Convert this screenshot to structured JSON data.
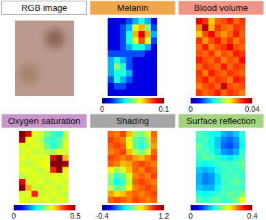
{
  "chart_data": [
    {
      "type": "image",
      "title": "RGB image"
    },
    {
      "type": "heatmap",
      "title": "Melanin",
      "cells": [
        [
          0.01,
          0.01,
          0.01,
          0.02,
          0.03,
          0.04,
          0.03,
          0.01
        ],
        [
          0.01,
          0.01,
          0.02,
          0.03,
          0.06,
          0.07,
          0.05,
          0.02
        ],
        [
          0.01,
          0.01,
          0.02,
          0.04,
          0.07,
          0.09,
          0.07,
          0.03
        ],
        [
          0.01,
          0.01,
          0.02,
          0.04,
          0.06,
          0.08,
          0.06,
          0.02
        ],
        [
          0.01,
          0.01,
          0.02,
          0.03,
          0.04,
          0.04,
          0.03,
          0.01
        ],
        [
          0.02,
          0.02,
          0.02,
          0.02,
          0.02,
          0.02,
          0.01,
          0.01
        ],
        [
          0.03,
          0.04,
          0.03,
          0.02,
          0.01,
          0.01,
          0.01,
          0.01
        ],
        [
          0.03,
          0.05,
          0.04,
          0.02,
          0.01,
          0.01,
          0.01,
          0.01
        ],
        [
          0.03,
          0.04,
          0.04,
          0.03,
          0.01,
          0.01,
          0.01,
          0.01
        ],
        [
          0.02,
          0.04,
          0.03,
          0.02,
          0.01,
          0.01,
          0.01,
          0.01
        ],
        [
          0.01,
          0.02,
          0.02,
          0.01,
          0.01,
          0.01,
          0.01,
          0.01
        ],
        [
          0.01,
          0.01,
          0.01,
          0.01,
          0.01,
          0.01,
          0.01,
          0.01
        ]
      ],
      "colorbar": {
        "range": [
          0,
          0.1
        ],
        "ticks": [
          0,
          0.1
        ]
      }
    },
    {
      "type": "heatmap",
      "title": "Blood volume",
      "cells": [
        [
          0.036,
          0.033,
          0.027,
          0.031,
          0.032,
          0.034,
          0.031,
          0.033
        ],
        [
          0.03,
          0.038,
          0.028,
          0.033,
          0.031,
          0.03,
          0.033,
          0.032
        ],
        [
          0.027,
          0.032,
          0.035,
          0.031,
          0.029,
          0.031,
          0.034,
          0.031
        ],
        [
          0.033,
          0.029,
          0.032,
          0.034,
          0.031,
          0.033,
          0.03,
          0.032
        ],
        [
          0.031,
          0.034,
          0.03,
          0.032,
          0.033,
          0.036,
          0.032,
          0.031
        ],
        [
          0.032,
          0.031,
          0.033,
          0.03,
          0.032,
          0.031,
          0.034,
          0.033
        ],
        [
          0.034,
          0.032,
          0.031,
          0.033,
          0.03,
          0.032,
          0.031,
          0.035
        ],
        [
          0.031,
          0.033,
          0.032,
          0.031,
          0.034,
          0.031,
          0.033,
          0.032
        ],
        [
          0.033,
          0.03,
          0.034,
          0.032,
          0.031,
          0.033,
          0.032,
          0.031
        ],
        [
          0.032,
          0.034,
          0.031,
          0.033,
          0.032,
          0.03,
          0.034,
          0.033
        ],
        [
          0.03,
          0.032,
          0.033,
          0.031,
          0.037,
          0.032,
          0.031,
          0.032
        ],
        [
          0.033,
          0.031,
          0.032,
          0.034,
          0.031,
          0.033,
          0.032,
          0.03
        ]
      ],
      "colorbar": {
        "range": [
          0,
          0.04
        ],
        "ticks": [
          0,
          0.04
        ]
      }
    },
    {
      "type": "heatmap",
      "title": "Oxygen saturation",
      "cells": [
        [
          0.5,
          0.45,
          0.3,
          0.29,
          0.25,
          0.22,
          0.2,
          0.28
        ],
        [
          0.48,
          0.31,
          0.29,
          0.28,
          0.22,
          0.21,
          0.23,
          0.29
        ],
        [
          0.3,
          0.29,
          0.3,
          0.29,
          0.24,
          0.2,
          0.24,
          0.3
        ],
        [
          0.29,
          0.3,
          0.28,
          0.29,
          0.28,
          0.27,
          0.3,
          0.29
        ],
        [
          0.3,
          0.29,
          0.3,
          0.29,
          0.3,
          0.45,
          0.5,
          0.35
        ],
        [
          0.29,
          0.28,
          0.29,
          0.3,
          0.31,
          0.5,
          0.5,
          0.48
        ],
        [
          0.3,
          0.3,
          0.29,
          0.28,
          0.3,
          0.42,
          0.5,
          0.32
        ],
        [
          0.28,
          0.29,
          0.3,
          0.29,
          0.29,
          0.3,
          0.29,
          0.3
        ],
        [
          0.45,
          0.3,
          0.29,
          0.3,
          0.28,
          0.29,
          0.3,
          0.29
        ],
        [
          0.5,
          0.35,
          0.29,
          0.28,
          0.3,
          0.29,
          0.28,
          0.3
        ],
        [
          0.29,
          0.3,
          0.42,
          0.29,
          0.29,
          0.3,
          0.29,
          0.28
        ],
        [
          0.3,
          0.29,
          0.3,
          0.29,
          0.3,
          0.28,
          0.3,
          0.29
        ]
      ],
      "colorbar": {
        "range": [
          0,
          0.5
        ],
        "ticks": [
          0,
          0.5
        ]
      }
    },
    {
      "type": "heatmap",
      "title": "Shading",
      "cells": [
        [
          0.85,
          0.8,
          0.9,
          0.7,
          0.45,
          0.4,
          0.55,
          0.85
        ],
        [
          0.9,
          0.85,
          0.8,
          0.55,
          0.35,
          0.3,
          0.45,
          0.8
        ],
        [
          0.85,
          0.9,
          0.85,
          0.6,
          0.35,
          0.25,
          0.4,
          0.75
        ],
        [
          0.8,
          0.85,
          0.9,
          0.7,
          0.5,
          0.4,
          0.55,
          0.85
        ],
        [
          0.9,
          0.85,
          0.8,
          0.85,
          0.75,
          0.7,
          0.8,
          0.9
        ],
        [
          0.85,
          0.8,
          0.7,
          0.75,
          0.85,
          0.9,
          0.85,
          0.8
        ],
        [
          0.6,
          0.45,
          0.55,
          0.7,
          0.85,
          0.8,
          0.9,
          0.85
        ],
        [
          0.45,
          0.3,
          0.35,
          0.55,
          0.8,
          0.85,
          0.8,
          0.9
        ],
        [
          0.4,
          0.2,
          0.3,
          0.5,
          0.85,
          0.9,
          0.85,
          0.8
        ],
        [
          0.5,
          0.35,
          0.4,
          0.6,
          0.8,
          0.85,
          0.9,
          0.85
        ],
        [
          0.75,
          0.65,
          0.7,
          0.8,
          0.85,
          0.8,
          0.85,
          0.9
        ],
        [
          0.85,
          0.9,
          0.85,
          0.8,
          0.9,
          0.85,
          0.8,
          0.85
        ]
      ],
      "colorbar": {
        "range": [
          -0.4,
          1.2
        ],
        "ticks": [
          -0.4,
          1.2
        ]
      }
    },
    {
      "type": "heatmap",
      "title": "Surface reflection",
      "cells": [
        [
          0.18,
          0.17,
          0.16,
          0.15,
          0.12,
          0.11,
          0.13,
          0.17
        ],
        [
          0.17,
          0.18,
          0.16,
          0.13,
          0.1,
          0.09,
          0.11,
          0.16
        ],
        [
          0.19,
          0.17,
          0.16,
          0.13,
          0.09,
          0.08,
          0.1,
          0.15
        ],
        [
          0.18,
          0.18,
          0.17,
          0.14,
          0.11,
          0.1,
          0.12,
          0.17
        ],
        [
          0.17,
          0.19,
          0.18,
          0.17,
          0.15,
          0.14,
          0.16,
          0.18
        ],
        [
          0.16,
          0.15,
          0.16,
          0.17,
          0.18,
          0.17,
          0.18,
          0.19
        ],
        [
          0.13,
          0.12,
          0.13,
          0.16,
          0.17,
          0.18,
          0.17,
          0.18
        ],
        [
          0.12,
          0.1,
          0.11,
          0.14,
          0.18,
          0.17,
          0.18,
          0.17
        ],
        [
          0.12,
          0.1,
          0.11,
          0.14,
          0.17,
          0.18,
          0.19,
          0.18
        ],
        [
          0.13,
          0.12,
          0.12,
          0.15,
          0.18,
          0.17,
          0.18,
          0.17
        ],
        [
          0.16,
          0.15,
          0.16,
          0.17,
          0.18,
          0.19,
          0.18,
          0.2
        ],
        [
          0.18,
          0.17,
          0.18,
          0.19,
          0.17,
          0.18,
          0.2,
          0.25
        ]
      ],
      "colorbar": {
        "range": [
          0,
          0.4
        ],
        "ticks": [
          0,
          0.4
        ]
      }
    }
  ]
}
